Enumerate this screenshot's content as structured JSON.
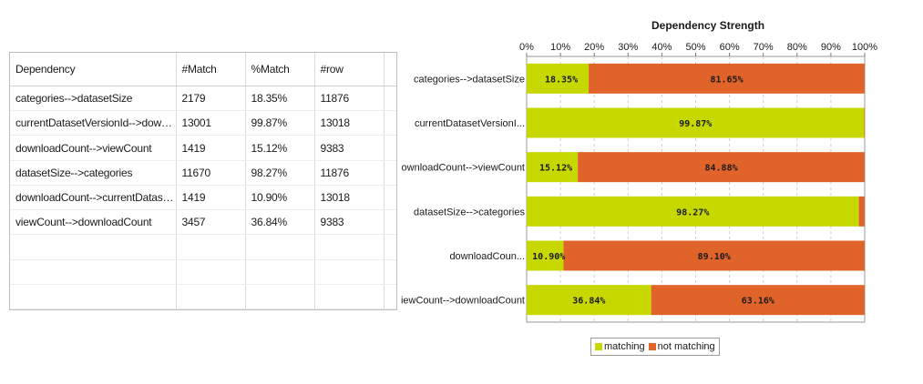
{
  "table": {
    "columns": [
      "Dependency",
      "#Match",
      "%Match",
      "#row"
    ],
    "rows": [
      [
        "categories-->datasetSize",
        "2179",
        "18.35%",
        "11876"
      ],
      [
        "currentDatasetVersionId-->downl...",
        "13001",
        "99.87%",
        "13018"
      ],
      [
        "downloadCount-->viewCount",
        "1419",
        "15.12%",
        "9383"
      ],
      [
        "datasetSize-->categories",
        "11670",
        "98.27%",
        "11876"
      ],
      [
        "downloadCount-->currentDataset...",
        "1419",
        "10.90%",
        "13018"
      ],
      [
        "viewCount-->downloadCount",
        "3457",
        "36.84%",
        "9383"
      ]
    ],
    "empty_rows": 3
  },
  "chart_data": {
    "type": "bar",
    "orientation": "horizontal",
    "stacked": true,
    "title": "Dependency Strength",
    "x_ticks": [
      "0%",
      "10%",
      "20%",
      "30%",
      "40%",
      "50%",
      "60%",
      "70%",
      "80%",
      "90%",
      "100%"
    ],
    "xlim": [
      0,
      100
    ],
    "categories": [
      "categories-->datasetSize",
      "currentDatasetVersionI...",
      "downloadCount-->viewCount",
      "datasetSize-->categories",
      "downloadCoun...",
      "viewCount-->downloadCount"
    ],
    "series": [
      {
        "name": "matching",
        "values": [
          18.35,
          99.87,
          15.12,
          98.27,
          10.9,
          36.84
        ],
        "labels": [
          "18.35%",
          "99.87%",
          "15.12%",
          "98.27%",
          "10.90%",
          "36.84%"
        ]
      },
      {
        "name": "not matching",
        "values": [
          81.65,
          0.13,
          84.88,
          1.73,
          89.1,
          63.16
        ],
        "labels": [
          "81.65%",
          "",
          "84.88%",
          "",
          "89.10%",
          "63.16%"
        ]
      }
    ],
    "colors": {
      "matching": "#c6d800",
      "not matching": "#e0642a"
    },
    "grid": true,
    "legend": "bottom"
  },
  "legend": {
    "matching": "matching",
    "not_matching": "not matching"
  }
}
